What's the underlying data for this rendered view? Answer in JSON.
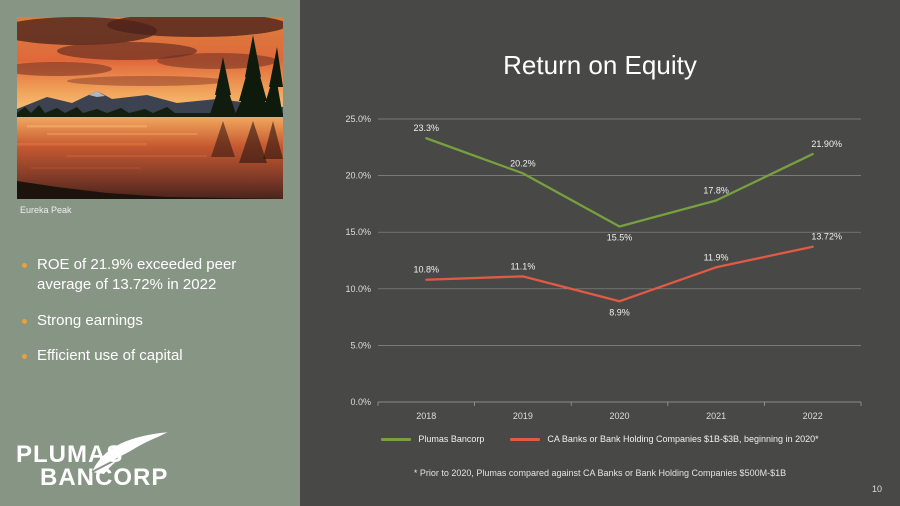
{
  "slide": {
    "title": "Return on Equity",
    "page_number": "10",
    "footnote": "* Prior to 2020, Plumas compared against CA Banks or Bank Holding Companies $500M-$1B"
  },
  "sidebar": {
    "photo_caption": "Eureka Peak",
    "bullets": [
      "ROE of 21.9% exceeded peer average of 13.72% in 2022",
      "Strong earnings",
      "Efficient use of capital"
    ],
    "logo": {
      "line1": "PLUMAS",
      "line2": "BANCORP"
    }
  },
  "chart_data": {
    "type": "line",
    "title": "Return on Equity",
    "categories": [
      "2018",
      "2019",
      "2020",
      "2021",
      "2022"
    ],
    "series": [
      {
        "name": "Plumas Bancorp",
        "color": "#76a13e",
        "values": [
          23.3,
          20.2,
          15.5,
          17.8,
          21.9
        ],
        "labels": [
          "23.3%",
          "20.2%",
          "15.5%",
          "17.8%",
          "21.90%"
        ]
      },
      {
        "name": "CA Banks or Bank Holding Companies $1B-$3B, beginning in 2020*",
        "color": "#e05b45",
        "values": [
          10.8,
          11.1,
          8.9,
          11.9,
          13.72
        ],
        "labels": [
          "10.8%",
          "11.1%",
          "8.9%",
          "11.9%",
          "13.72%"
        ]
      }
    ],
    "y_ticks": [
      "0.0%",
      "5.0%",
      "10.0%",
      "15.0%",
      "20.0%",
      "25.0%"
    ],
    "ylim": [
      0,
      25
    ],
    "grid": true,
    "legend_position": "bottom"
  },
  "colors": {
    "sidebar_bg": "#879584",
    "main_bg": "#484846",
    "bullet": "#e8a23c",
    "gridline": "#8a8a8a"
  }
}
